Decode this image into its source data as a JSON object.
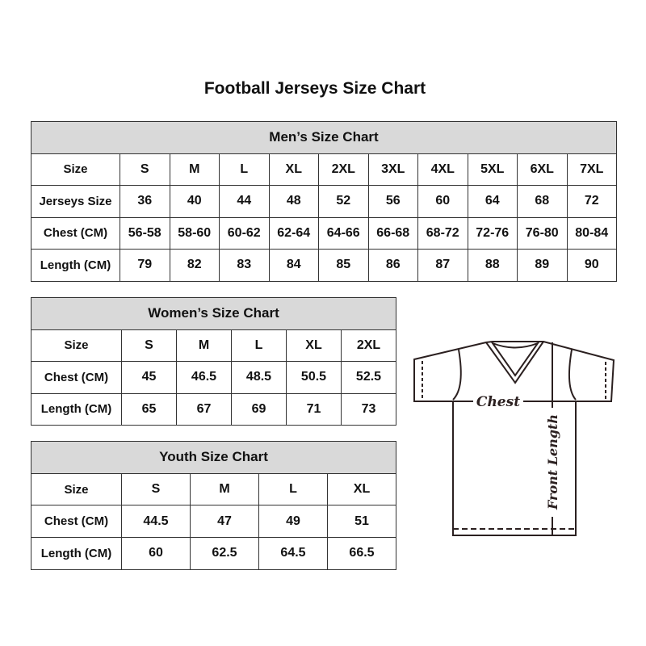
{
  "title": "Football Jerseys Size Chart",
  "men": {
    "caption": "Men’s Size Chart",
    "rows": [
      {
        "label": "Size",
        "cells": [
          "S",
          "M",
          "L",
          "XL",
          "2XL",
          "3XL",
          "4XL",
          "5XL",
          "6XL",
          "7XL"
        ]
      },
      {
        "label": "Jerseys Size",
        "cells": [
          "36",
          "40",
          "44",
          "48",
          "52",
          "56",
          "60",
          "64",
          "68",
          "72"
        ]
      },
      {
        "label": "Chest (CM)",
        "cells": [
          "56-58",
          "58-60",
          "60-62",
          "62-64",
          "64-66",
          "66-68",
          "68-72",
          "72-76",
          "76-80",
          "80-84"
        ]
      },
      {
        "label": "Length (CM)",
        "cells": [
          "79",
          "82",
          "83",
          "84",
          "85",
          "86",
          "87",
          "88",
          "89",
          "90"
        ]
      }
    ]
  },
  "women": {
    "caption": "Women’s Size Chart",
    "rows": [
      {
        "label": "Size",
        "cells": [
          "S",
          "M",
          "L",
          "XL",
          "2XL"
        ]
      },
      {
        "label": "Chest (CM)",
        "cells": [
          "45",
          "46.5",
          "48.5",
          "50.5",
          "52.5"
        ]
      },
      {
        "label": "Length (CM)",
        "cells": [
          "65",
          "67",
          "69",
          "71",
          "73"
        ]
      }
    ]
  },
  "youth": {
    "caption": "Youth Size Chart",
    "rows": [
      {
        "label": "Size",
        "cells": [
          "S",
          "M",
          "L",
          "XL"
        ]
      },
      {
        "label": "Chest (CM)",
        "cells": [
          "44.5",
          "47",
          "49",
          "51"
        ]
      },
      {
        "label": "Length (CM)",
        "cells": [
          "60",
          "62.5",
          "64.5",
          "66.5"
        ]
      }
    ]
  },
  "diagram": {
    "chest_label": "Chest",
    "length_label": "Front Length"
  }
}
